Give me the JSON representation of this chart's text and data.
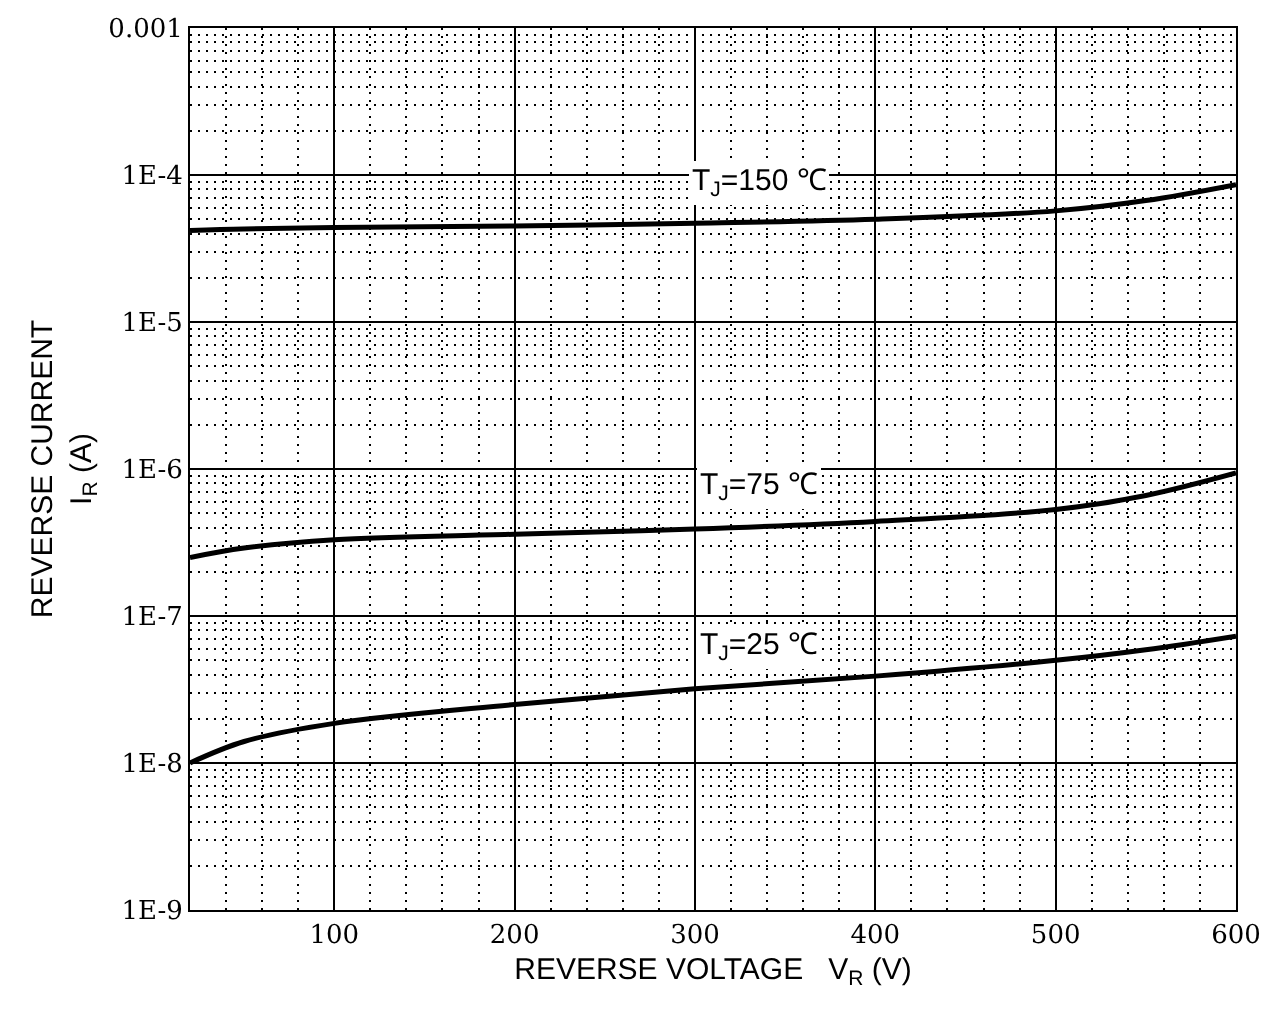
{
  "chart_data": {
    "type": "line",
    "xlabel": "REVERSE VOLTAGE   V$_{R}$ (V)",
    "ylabel": "REVERSE CURRENT\nI$_{R}$ (A)",
    "x": [
      20,
      50,
      100,
      200,
      300,
      400,
      500,
      550,
      600
    ],
    "series": [
      {
        "color": "#000000",
        "values": [
          4.2e-05,
          4.3e-05,
          4.4e-05,
          4.5e-05,
          4.7e-05,
          5e-05,
          5.7e-05,
          6.7e-05,
          8.6e-05
        ]
      },
      {
        "color": "#000000",
        "values": [
          2.5e-07,
          2.9e-07,
          3.3e-07,
          3.6e-07,
          3.9e-07,
          4.4e-07,
          5.3e-07,
          6.6e-07,
          9.4e-07
        ]
      },
      {
        "color": "#000000",
        "values": [
          1e-08,
          1.4e-08,
          1.86e-08,
          2.5e-08,
          3.2e-08,
          3.9e-08,
          5e-08,
          5.9e-08,
          7.3e-08
        ]
      }
    ],
    "xlim": [
      20,
      600
    ],
    "xticks": [
      100,
      200,
      300,
      400,
      500,
      600
    ],
    "ylim": [
      1e-09,
      0.001
    ],
    "yticks": [
      {
        "value": 1e-09,
        "label": "1E-9"
      },
      {
        "value": 1e-08,
        "label": "1E-8"
      },
      {
        "value": 1e-07,
        "label": "1E-7"
      },
      {
        "value": 1e-06,
        "label": "1E-6"
      },
      {
        "value": 1e-05,
        "label": "1E-5"
      },
      {
        "value": 0.0001,
        "label": "1E-4"
      },
      {
        "value": 0.001,
        "label": "0.001"
      }
    ],
    "log": true,
    "grid": true,
    "marker": "none",
    "line_style": "solid",
    "annotations": [
      "T$_{J}$=150 ℃",
      "T$_{J}$=75 ℃",
      "T$_{J}$=25 ℃"
    ]
  }
}
